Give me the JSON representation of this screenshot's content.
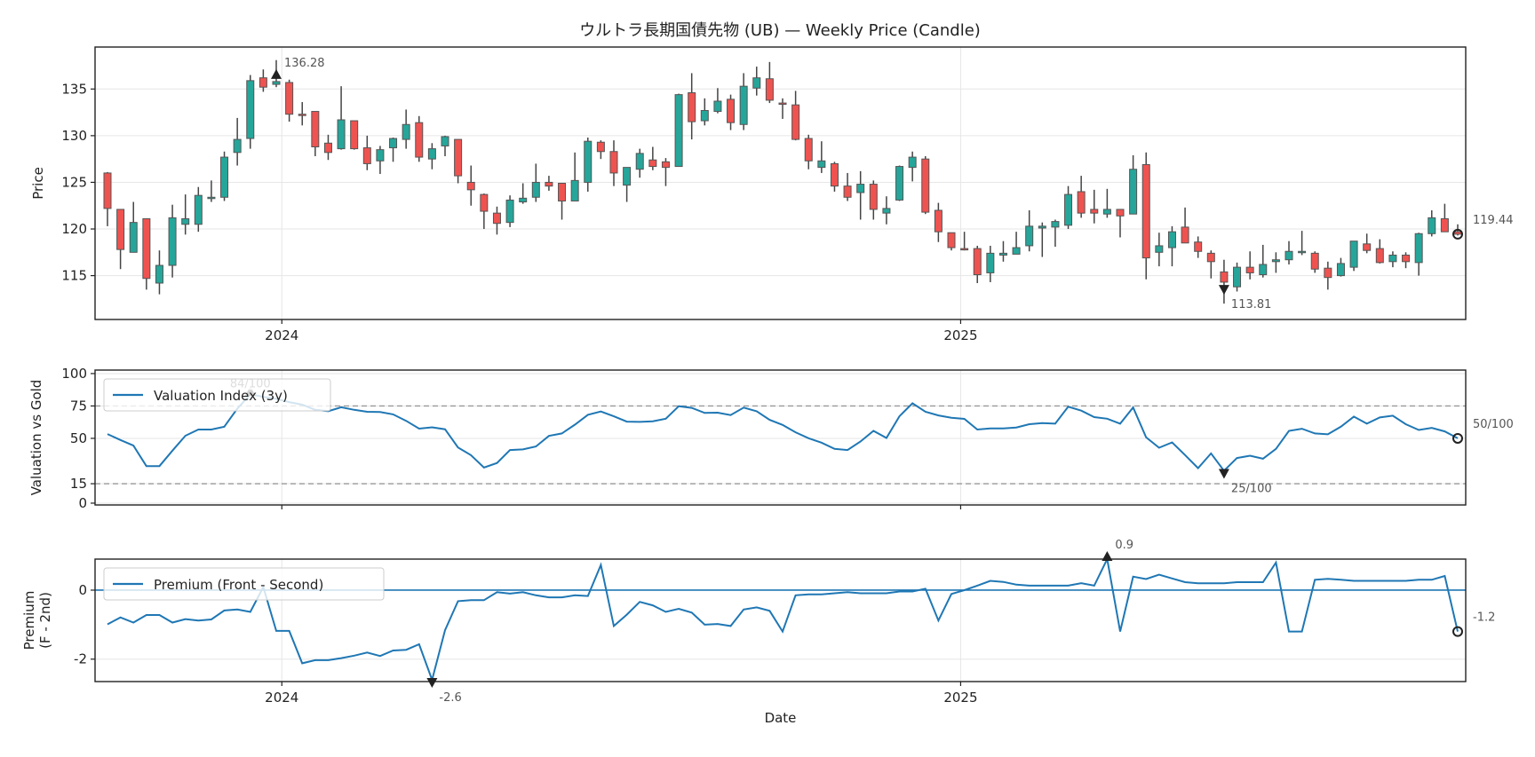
{
  "title": "ウルトラ長期国債先物 (UB) — Weekly Price (Candle)",
  "colors": {
    "up": "#26a69a",
    "down": "#ef5350",
    "edge": "#555555",
    "line": "#1f77b4",
    "ref": "#999999",
    "grid": "#e6e6e6"
  },
  "chart_data": [
    {
      "id": "price",
      "type": "candlestick",
      "start_date": "2023-09-29",
      "interval_days": 7,
      "ylabel": "Price",
      "ylim": [
        110.3,
        139.5
      ],
      "yticks": [
        115,
        120,
        125,
        130,
        135
      ],
      "xticks": [
        {
          "date": "2024-01-01",
          "label": "2024"
        },
        {
          "date": "2025-01-01",
          "label": "2025"
        }
      ],
      "grid": true,
      "open": [
        126.0,
        122.1,
        117.5,
        121.1,
        114.2,
        116.1,
        120.5,
        120.5,
        123.3,
        123.4,
        128.2,
        129.7,
        136.2,
        135.5,
        135.7,
        132.3,
        132.6,
        129.2,
        128.6,
        131.6,
        128.7,
        127.3,
        128.7,
        129.6,
        131.4,
        127.5,
        128.9,
        129.6,
        125.0,
        123.7,
        121.7,
        120.7,
        122.9,
        123.4,
        125.0,
        124.9,
        123.0,
        125.0,
        129.3,
        128.3,
        124.7,
        126.4,
        127.4,
        127.2,
        126.7,
        134.6,
        131.6,
        132.6,
        133.9,
        131.2,
        135.1,
        136.1,
        133.5,
        133.3,
        129.7,
        126.6,
        127.0,
        124.6,
        123.9,
        124.8,
        121.7,
        123.1,
        126.6,
        127.5,
        122.0,
        119.6,
        117.9,
        117.9,
        115.3,
        117.2,
        117.3,
        118.2,
        120.1,
        120.2,
        120.4,
        124.0,
        122.1,
        121.6,
        122.1,
        121.6,
        126.9,
        117.5,
        118.0,
        120.2,
        118.6,
        117.4,
        115.4,
        113.8,
        115.9,
        115.1,
        116.5,
        116.7,
        117.5,
        117.4,
        115.8,
        115.0,
        115.9,
        118.4,
        117.9,
        116.5,
        117.2,
        116.4,
        119.5,
        121.1,
        119.7
      ],
      "high": [
        126.1,
        122.1,
        122.9,
        121.1,
        117.7,
        122.6,
        123.7,
        124.5,
        125.2,
        128.3,
        131.9,
        136.5,
        137.1,
        138.1,
        136.0,
        133.6,
        132.6,
        130.1,
        135.3,
        131.6,
        130.0,
        128.9,
        129.8,
        132.8,
        132.1,
        129.2,
        130.0,
        129.6,
        126.8,
        123.8,
        122.4,
        123.6,
        124.9,
        127.0,
        125.7,
        124.9,
        128.2,
        129.8,
        129.5,
        129.5,
        126.6,
        128.6,
        128.8,
        127.6,
        134.5,
        136.7,
        134.0,
        135.1,
        134.4,
        136.7,
        137.4,
        137.9,
        134.0,
        134.8,
        130.1,
        129.4,
        127.2,
        126.0,
        126.2,
        125.2,
        123.5,
        126.8,
        128.3,
        127.8,
        122.8,
        119.6,
        119.7,
        118.2,
        118.2,
        118.7,
        119.7,
        122.0,
        120.7,
        121.0,
        124.6,
        125.7,
        124.2,
        124.3,
        122.1,
        127.9,
        128.2,
        119.6,
        120.3,
        122.3,
        119.2,
        117.7,
        116.7,
        116.4,
        117.6,
        118.3,
        117.5,
        118.7,
        119.8,
        117.6,
        116.5,
        116.9,
        118.7,
        119.5,
        118.9,
        117.6,
        117.5,
        119.6,
        122.0,
        122.7,
        120.5
      ],
      "low": [
        120.3,
        115.7,
        117.5,
        113.5,
        113.0,
        114.8,
        119.4,
        119.7,
        122.9,
        123.0,
        126.8,
        128.6,
        134.7,
        135.2,
        131.5,
        131.1,
        127.8,
        127.4,
        128.5,
        128.5,
        126.3,
        125.9,
        127.2,
        128.6,
        127.2,
        126.4,
        127.8,
        124.9,
        122.5,
        120.0,
        119.4,
        120.2,
        122.7,
        122.9,
        124.1,
        121.0,
        123.0,
        124.0,
        127.5,
        124.6,
        122.9,
        125.5,
        126.3,
        124.6,
        126.7,
        129.6,
        131.1,
        132.4,
        130.6,
        130.6,
        134.3,
        133.5,
        131.8,
        129.5,
        126.4,
        126.0,
        124.0,
        123.0,
        121.0,
        121.0,
        120.5,
        123.0,
        125.1,
        121.6,
        118.6,
        117.7,
        117.7,
        114.2,
        114.3,
        116.5,
        117.3,
        117.6,
        117.0,
        118.1,
        120.0,
        121.2,
        120.6,
        121.2,
        119.1,
        121.6,
        114.6,
        116.0,
        116.0,
        118.5,
        116.9,
        114.7,
        112.0,
        113.3,
        114.6,
        114.8,
        115.3,
        116.2,
        117.2,
        115.3,
        113.5,
        114.9,
        115.5,
        117.4,
        116.3,
        115.9,
        115.8,
        115.0,
        119.2,
        119.7,
        119.3
      ],
      "close": [
        122.2,
        117.8,
        120.7,
        114.7,
        116.1,
        121.2,
        121.1,
        123.6,
        123.4,
        127.7,
        129.6,
        135.9,
        135.2,
        135.8,
        132.3,
        132.2,
        128.8,
        128.2,
        131.7,
        128.6,
        127.0,
        128.5,
        129.7,
        131.2,
        127.7,
        128.6,
        129.9,
        125.7,
        124.2,
        121.9,
        120.6,
        123.1,
        123.3,
        125.0,
        124.6,
        123.0,
        125.2,
        129.4,
        128.3,
        126.0,
        126.6,
        128.1,
        126.7,
        126.6,
        134.4,
        131.5,
        132.7,
        133.7,
        131.4,
        135.3,
        136.2,
        133.8,
        133.4,
        129.6,
        127.3,
        127.3,
        124.6,
        123.4,
        124.8,
        122.1,
        122.2,
        126.7,
        127.7,
        121.8,
        119.7,
        118.0,
        117.8,
        115.1,
        117.4,
        117.4,
        118.0,
        120.3,
        120.3,
        120.8,
        123.7,
        121.7,
        121.7,
        122.1,
        121.4,
        126.4,
        116.9,
        118.2,
        119.7,
        118.5,
        117.6,
        116.5,
        114.3,
        115.9,
        115.3,
        116.2,
        116.7,
        117.6,
        117.6,
        115.7,
        114.8,
        116.3,
        118.7,
        117.7,
        116.4,
        117.2,
        116.5,
        119.5,
        121.2,
        119.7,
        119.44
      ],
      "annotations": [
        {
          "index": 13,
          "value": 136.28,
          "text": "136.28",
          "marker": "triangle-up"
        },
        {
          "index": 86,
          "value": 113.81,
          "text": "113.81",
          "marker": "triangle-down"
        },
        {
          "index": 104,
          "value": 119.44,
          "text": "119.44",
          "marker": "circle"
        }
      ]
    },
    {
      "id": "valuation",
      "type": "line",
      "ylabel": "Valuation vs Gold",
      "ylim": [
        -1.4,
        102.7
      ],
      "yticks": [
        0,
        15,
        50,
        75,
        100
      ],
      "ref_lines": [
        75,
        15
      ],
      "legend": {
        "label": "Valuation Index (3y)",
        "placement": "upper-left"
      },
      "grid": true,
      "series": [
        {
          "name": "Valuation Index (3y)",
          "values": [
            53.3,
            48.7,
            44.4,
            28.6,
            28.6,
            40.5,
            52,
            56.8,
            56.8,
            59,
            73,
            84,
            82,
            80.5,
            78,
            76,
            72,
            71,
            74,
            72,
            70.5,
            70.3,
            68.5,
            63.5,
            57.5,
            58.5,
            57,
            43,
            37,
            27.5,
            31,
            41,
            41.5,
            43.7,
            51.9,
            53.8,
            60.6,
            68.2,
            70.7,
            67,
            62.9,
            62.7,
            63.2,
            65.2,
            74.8,
            73.5,
            69.6,
            69.8,
            68,
            73.7,
            70.9,
            64.3,
            60.4,
            54.7,
            50.1,
            46.7,
            41.9,
            41,
            47.6,
            55.8,
            50.3,
            67,
            77.1,
            70.5,
            67.7,
            65.9,
            65,
            56.8,
            57.7,
            57.7,
            58.4,
            60.9,
            61.8,
            61.3,
            74.4,
            71.4,
            66.4,
            65.2,
            61.3,
            73.9,
            50.8,
            42.8,
            46.9,
            37.1,
            27,
            38.4,
            25,
            34.8,
            36.6,
            34.3,
            41.9,
            55.8,
            57.4,
            53.8,
            53.1,
            59,
            66.8,
            61.3,
            66.1,
            67.5,
            60.9,
            56.5,
            58.1,
            55.4,
            50
          ]
        }
      ],
      "annotations": [
        {
          "index": 11,
          "value": 84,
          "text": "84/100",
          "marker": "triangle-up"
        },
        {
          "index": 86,
          "value": 25,
          "text": "25/100",
          "marker": "triangle-down"
        },
        {
          "index": 104,
          "value": 50,
          "text": "50/100",
          "marker": "circle"
        }
      ]
    },
    {
      "id": "premium",
      "type": "line",
      "ylabel": "Premium",
      "ylabel2": "(F - 2nd)",
      "xlabel": "Date",
      "ylim": [
        -2.65,
        0.9
      ],
      "yticks": [
        -2,
        0
      ],
      "ref_lines": [
        0
      ],
      "legend": {
        "label": "Premium (Front - Second)",
        "placement": "upper-left"
      },
      "grid": true,
      "xticks": [
        {
          "date": "2024-01-01",
          "label": "2024"
        },
        {
          "date": "2025-01-01",
          "label": "2025"
        }
      ],
      "series": [
        {
          "name": "Premium (Front - Second)",
          "values": [
            -0.99,
            -0.79,
            -0.94,
            -0.72,
            -0.72,
            -0.94,
            -0.84,
            -0.88,
            -0.85,
            -0.59,
            -0.56,
            -0.63,
            0.09,
            -1.18,
            -1.18,
            -2.12,
            -2.03,
            -2.03,
            -1.97,
            -1.9,
            -1.81,
            -1.91,
            -1.75,
            -1.73,
            -1.57,
            -2.6,
            -1.16,
            -0.32,
            -0.29,
            -0.29,
            -0.06,
            -0.1,
            -0.06,
            -0.15,
            -0.21,
            -0.21,
            -0.15,
            -0.17,
            0.73,
            -1.04,
            -0.71,
            -0.34,
            -0.44,
            -0.63,
            -0.54,
            -0.65,
            -1.0,
            -0.98,
            -1.04,
            -0.56,
            -0.5,
            -0.6,
            -1.2,
            -0.15,
            -0.12,
            -0.12,
            -0.09,
            -0.06,
            -0.09,
            -0.09,
            -0.09,
            -0.04,
            -0.04,
            0.04,
            -0.88,
            -0.11,
            0,
            0.13,
            0.27,
            0.24,
            0.16,
            0.13,
            0.13,
            0.13,
            0.13,
            0.2,
            0.13,
            0.9,
            -1.2,
            0.39,
            0.32,
            0.45,
            0.34,
            0.23,
            0.2,
            0.2,
            0.2,
            0.23,
            0.23,
            0.23,
            0.8,
            -1.2,
            -1.2,
            0.3,
            0.33,
            0.3,
            0.27,
            0.27,
            0.27,
            0.27,
            0.27,
            0.3,
            0.3,
            0.41,
            -1.2
          ]
        }
      ],
      "annotations": [
        {
          "index": 77,
          "value": 0.9,
          "text": "0.9",
          "marker": "triangle-up"
        },
        {
          "index": 25,
          "value": -2.6,
          "text": "-2.6",
          "marker": "triangle-down"
        },
        {
          "index": 104,
          "value": -1.2,
          "text": "-1.2",
          "marker": "circle"
        }
      ]
    }
  ]
}
